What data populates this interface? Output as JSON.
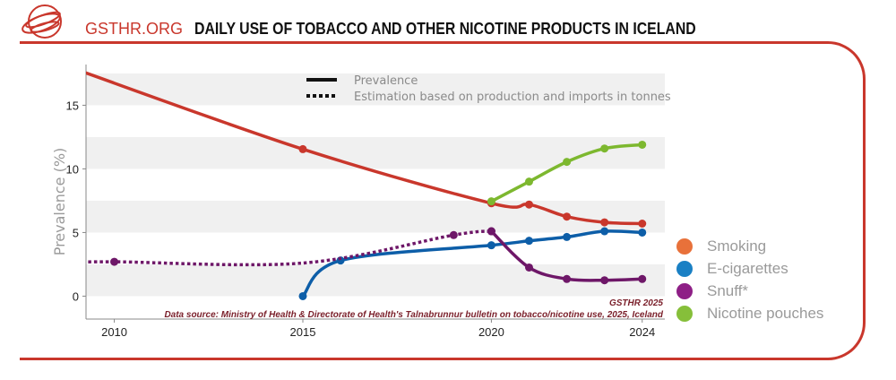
{
  "header": {
    "brand": "GSTHR.ORG",
    "title": "DAILY USE OF TOBACCO AND OTHER NICOTINE PRODUCTS IN ICELAND"
  },
  "chart_data": {
    "type": "line",
    "title": "DAILY USE OF TOBACCO AND OTHER NICOTINE PRODUCTS IN ICELAND",
    "xlabel": "",
    "ylabel": "Prevalence (%)",
    "xlim": [
      2009.25,
      2024.6
    ],
    "ylim": [
      -1.8,
      18.2
    ],
    "xticks": [
      2010,
      2015,
      2020,
      2024
    ],
    "yticks": [
      0,
      5,
      10,
      15
    ],
    "grid": "alternating horizontal bands",
    "line_style_legend": [
      {
        "style": "solid",
        "label": "Prevalence"
      },
      {
        "style": "dotted",
        "label": "Estimation based on production and imports in tonnes"
      }
    ],
    "legend_position": "right",
    "series": [
      {
        "name": "Smoking",
        "color": "#c9372c",
        "legend_color": "#e8713a",
        "segments": [
          {
            "style": "solid",
            "x": [
              2009,
              2015,
              2020,
              2021,
              2022,
              2023,
              2024
            ],
            "y": [
              17.8,
              11.55,
              7.3,
              7.2,
              6.25,
              5.8,
              5.7
            ],
            "markers": [
              false,
              true,
              true,
              true,
              true,
              true,
              true
            ]
          }
        ]
      },
      {
        "name": "E-cigarettes",
        "color": "#0d5ea8",
        "legend_color": "#1a80c4",
        "segments": [
          {
            "style": "solid",
            "x": [
              2015,
              2016,
              2020,
              2021,
              2022,
              2023,
              2024
            ],
            "y": [
              0,
              2.8,
              4.0,
              4.35,
              4.65,
              5.1,
              5.0
            ],
            "markers": [
              true,
              true,
              true,
              true,
              true,
              true,
              true
            ]
          }
        ]
      },
      {
        "name": "Snuff*",
        "color": "#6e1768",
        "legend_color": "#8e1f86",
        "segments": [
          {
            "style": "dotted",
            "x": [
              2009,
              2010,
              2015,
              2019,
              2020
            ],
            "y": [
              2.65,
              2.7,
              2.6,
              4.8,
              5.1
            ],
            "markers": [
              false,
              true,
              false,
              true,
              true
            ]
          },
          {
            "style": "solid",
            "x": [
              2020,
              2021,
              2022,
              2023,
              2024
            ],
            "y": [
              5.1,
              2.25,
              1.35,
              1.25,
              1.35
            ],
            "markers": [
              true,
              true,
              true,
              true,
              true
            ]
          }
        ]
      },
      {
        "name": "Nicotine pouches",
        "color": "#7db82f",
        "legend_color": "#86bf3a",
        "segments": [
          {
            "style": "solid",
            "x": [
              2020,
              2021,
              2022,
              2023,
              2024
            ],
            "y": [
              7.45,
              9.0,
              10.55,
              11.6,
              11.9
            ],
            "markers": [
              true,
              true,
              true,
              true,
              true
            ]
          }
        ]
      }
    ],
    "annotations": [
      "GSTHR 2025",
      "Data source: Ministry of Health & Directorate of Health's Talnabrunnur bulletin on tobacco/nicotine use, 2025, Iceland"
    ]
  }
}
